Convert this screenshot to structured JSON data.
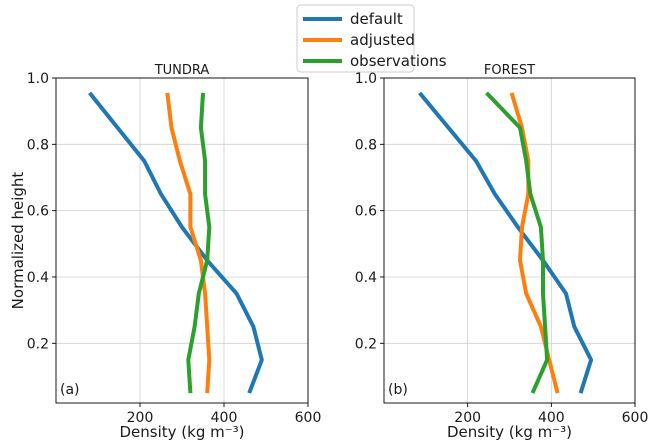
{
  "chart_data": {
    "type": "line",
    "legend": {
      "placement": "top-center",
      "entries": [
        {
          "name": "default",
          "color": "#1f77b4"
        },
        {
          "name": "adjusted",
          "color": "#ff7f0e"
        },
        {
          "name": "observations",
          "color": "#2ca02c"
        }
      ]
    },
    "ylabel": "Normalized height",
    "xlabel": "Density (kg m⁻³)",
    "grid": true,
    "panels": [
      {
        "title": "TUNDRA",
        "tag": "(a)",
        "xlim": [
          0,
          600
        ],
        "ylim": [
          0.02,
          1.0
        ],
        "xticks": [
          200,
          400,
          600
        ],
        "xtick_labels": [
          "200",
          "400",
          "600"
        ],
        "yticks": [
          0.2,
          0.4,
          0.6,
          0.8,
          1.0
        ],
        "ytick_labels": [
          "0.2",
          "0.4",
          "0.6",
          "0.8",
          "1.0"
        ],
        "show_ylabel": true,
        "series": [
          {
            "name": "default",
            "color": "#1f77b4",
            "x": [
              80,
              210,
              250,
              300,
              360,
              430,
              470,
              490,
              460
            ],
            "y": [
              0.955,
              0.75,
              0.65,
              0.55,
              0.45,
              0.35,
              0.25,
              0.15,
              0.05
            ]
          },
          {
            "name": "adjusted",
            "color": "#ff7f0e",
            "x": [
              265,
              275,
              295,
              320,
              320,
              345,
              355,
              360,
              365,
              360
            ],
            "y": [
              0.955,
              0.85,
              0.75,
              0.65,
              0.55,
              0.45,
              0.35,
              0.25,
              0.15,
              0.05
            ]
          },
          {
            "name": "observations",
            "color": "#2ca02c",
            "x": [
              350,
              345,
              355,
              355,
              365,
              360,
              340,
              330,
              315,
              320
            ],
            "y": [
              0.955,
              0.85,
              0.75,
              0.65,
              0.55,
              0.45,
              0.35,
              0.25,
              0.15,
              0.05
            ]
          }
        ]
      },
      {
        "title": "FOREST",
        "tag": "(b)",
        "xlim": [
          0,
          600
        ],
        "ylim": [
          0.02,
          1.0
        ],
        "xticks": [
          200,
          400,
          600
        ],
        "xtick_labels": [
          "200",
          "400",
          "600"
        ],
        "yticks": [
          0.2,
          0.4,
          0.6,
          0.8,
          1.0
        ],
        "ytick_labels": [
          "0.2",
          "0.4",
          "0.6",
          "0.8",
          "1.0"
        ],
        "show_ylabel": false,
        "series": [
          {
            "name": "default",
            "color": "#1f77b4",
            "x": [
              85,
              220,
              265,
              320,
              380,
              435,
              455,
              495,
              470
            ],
            "y": [
              0.955,
              0.75,
              0.65,
              0.55,
              0.45,
              0.35,
              0.25,
              0.15,
              0.05
            ]
          },
          {
            "name": "adjusted",
            "color": "#ff7f0e",
            "x": [
              305,
              330,
              345,
              345,
              330,
              325,
              340,
              375,
              395,
              415
            ],
            "y": [
              0.955,
              0.85,
              0.75,
              0.65,
              0.55,
              0.45,
              0.35,
              0.25,
              0.15,
              0.05
            ]
          },
          {
            "name": "observations",
            "color": "#2ca02c",
            "x": [
              245,
              325,
              340,
              350,
              375,
              380,
              380,
              385,
              390,
              355
            ],
            "y": [
              0.955,
              0.85,
              0.75,
              0.65,
              0.55,
              0.45,
              0.35,
              0.25,
              0.15,
              0.05
            ]
          }
        ]
      }
    ]
  }
}
